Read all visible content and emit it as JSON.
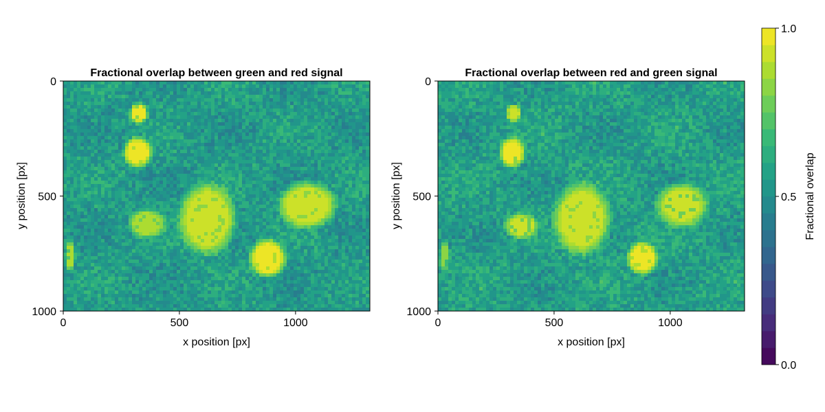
{
  "chart_data": [
    {
      "type": "heatmap",
      "title": "Fractional overlap between green and red signal",
      "xlabel": "x position [px]",
      "ylabel": "y position [px]",
      "xlim": [
        0,
        1320
      ],
      "ylim": [
        1000,
        0
      ],
      "xticks": [
        0,
        500,
        1000
      ],
      "yticks": [
        0,
        500,
        1000
      ],
      "xtick_labels": [
        "0",
        "500",
        "1000"
      ],
      "ytick_labels": [
        "0",
        "500",
        "1000"
      ],
      "background_level": 0.55,
      "blobs": [
        {
          "x": 325,
          "y": 140,
          "rx": 35,
          "ry": 40,
          "value": 0.95
        },
        {
          "x": 320,
          "y": 310,
          "rx": 55,
          "ry": 60,
          "value": 0.97
        },
        {
          "x": 360,
          "y": 620,
          "rx": 70,
          "ry": 55,
          "value": 0.88
        },
        {
          "x": 620,
          "y": 600,
          "rx": 110,
          "ry": 140,
          "value": 0.93
        },
        {
          "x": 1050,
          "y": 540,
          "rx": 110,
          "ry": 90,
          "value": 0.93
        },
        {
          "x": 880,
          "y": 770,
          "rx": 70,
          "ry": 75,
          "value": 0.98
        },
        {
          "x": 30,
          "y": 760,
          "rx": 20,
          "ry": 60,
          "value": 0.85
        }
      ]
    },
    {
      "type": "heatmap",
      "title": "Fractional overlap between red and green signal",
      "xlabel": "x position [px]",
      "ylabel": "y position [px]",
      "xlim": [
        0,
        1320
      ],
      "ylim": [
        1000,
        0
      ],
      "xticks": [
        0,
        500,
        1000
      ],
      "yticks": [
        0,
        500,
        1000
      ],
      "xtick_labels": [
        "0",
        "500",
        "1000"
      ],
      "ytick_labels": [
        "0",
        "500",
        "1000"
      ],
      "background_level": 0.56,
      "blobs": [
        {
          "x": 325,
          "y": 140,
          "rx": 30,
          "ry": 35,
          "value": 0.92
        },
        {
          "x": 320,
          "y": 310,
          "rx": 50,
          "ry": 60,
          "value": 0.95
        },
        {
          "x": 360,
          "y": 630,
          "rx": 65,
          "ry": 50,
          "value": 0.9
        },
        {
          "x": 620,
          "y": 600,
          "rx": 110,
          "ry": 140,
          "value": 0.93
        },
        {
          "x": 1050,
          "y": 540,
          "rx": 100,
          "ry": 85,
          "value": 0.9
        },
        {
          "x": 880,
          "y": 770,
          "rx": 60,
          "ry": 65,
          "value": 0.98
        },
        {
          "x": 30,
          "y": 760,
          "rx": 20,
          "ry": 60,
          "value": 0.8
        }
      ]
    }
  ],
  "colorbar": {
    "label": "Fractional overlap",
    "range": [
      0,
      1
    ],
    "ticks": [
      "0.0",
      "0.5",
      "1.0"
    ],
    "levels": 20,
    "colormap": "viridis",
    "colors": [
      "#440154",
      "#482878",
      "#3e4989",
      "#31688e",
      "#26828e",
      "#1f9e89",
      "#35b779",
      "#6ece58",
      "#b5de2b",
      "#fde725"
    ]
  }
}
